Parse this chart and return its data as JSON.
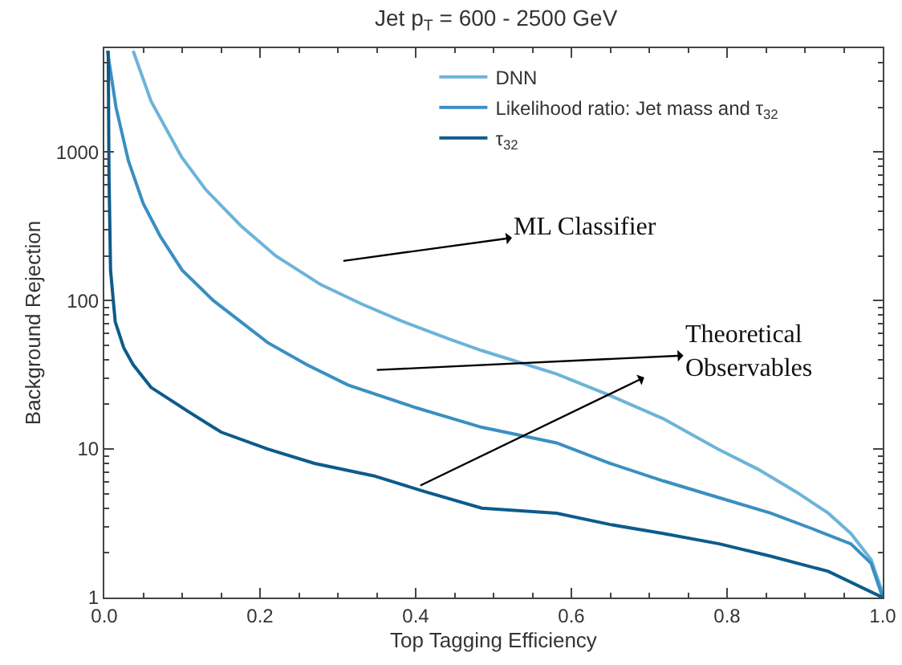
{
  "chart_data": {
    "type": "line",
    "title": "Jet p$_{T}$ = 600 - 2500 GeV",
    "xlabel": "Top Tagging Efficiency",
    "ylabel": "Background Rejection",
    "log": "y",
    "grid": false,
    "legend": "top right",
    "marker": "none",
    "line_style": "solid",
    "xlim": [
      0,
      1
    ],
    "xticks": [
      {
        "value": 0,
        "label": "0.0"
      },
      0.2,
      0.4,
      0.6,
      0.8,
      {
        "value": 1,
        "label": "1.0"
      }
    ],
    "ylim": [
      1,
      5000
    ],
    "yticks": [
      1,
      10,
      100,
      1000
    ],
    "series": [
      {
        "name": "DNN",
        "color": "#6cb4d8",
        "x": [
          0.037,
          0.06,
          0.099,
          0.13,
          0.175,
          0.22,
          0.278,
          0.33,
          0.381,
          0.443,
          0.485,
          0.581,
          0.649,
          0.718,
          0.788,
          0.84,
          0.89,
          0.93,
          0.959,
          0.985,
          1.0
        ],
        "values": [
          4800,
          2200,
          930,
          560,
          320,
          200,
          128,
          95,
          73,
          55,
          46,
          32,
          23,
          16,
          10,
          7.3,
          5.1,
          3.7,
          2.7,
          1.8,
          1.07
        ]
      },
      {
        "name": "Likelihood ratio: Jet mass and τ$_{32}$",
        "color": "#3a8fc2",
        "x": [
          0.004,
          0.015,
          0.031,
          0.05,
          0.072,
          0.1,
          0.14,
          0.21,
          0.26,
          0.313,
          0.4,
          0.485,
          0.581,
          0.65,
          0.718,
          0.79,
          0.856,
          0.91,
          0.959,
          0.985,
          1.0
        ],
        "values": [
          4800,
          2000,
          870,
          450,
          270,
          160,
          100,
          52,
          37,
          27,
          19,
          14,
          11,
          8,
          6.1,
          4.7,
          3.7,
          2.9,
          2.3,
          1.7,
          1.0
        ]
      },
      {
        "name": "τ$_{32}$",
        "color": "#0d5b8c",
        "x": [
          0.005,
          0.006,
          0.008,
          0.014,
          0.025,
          0.037,
          0.06,
          0.107,
          0.15,
          0.21,
          0.27,
          0.346,
          0.41,
          0.485,
          0.581,
          0.65,
          0.718,
          0.79,
          0.856,
          0.93,
          1.0
        ],
        "values": [
          4800,
          700,
          160,
          72,
          48,
          37,
          26,
          18,
          13,
          10,
          8,
          6.6,
          5.2,
          4.0,
          3.7,
          3.1,
          2.7,
          2.3,
          1.9,
          1.5,
          1.0
        ]
      }
    ],
    "annotations": [
      "ML Classifier",
      "Theoretical Observables"
    ]
  }
}
